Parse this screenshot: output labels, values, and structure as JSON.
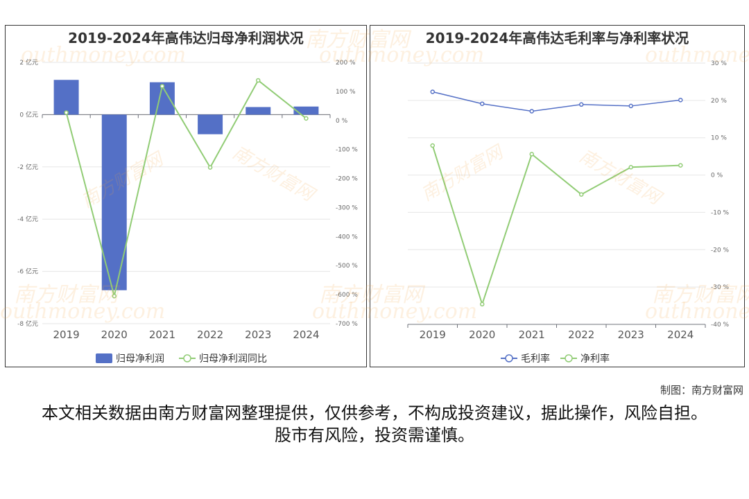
{
  "charts": {
    "left": {
      "title": "2019-2024年高伟达归母净利润状况",
      "legend": [
        "归母净利润",
        "归母净利润同比"
      ]
    },
    "right": {
      "title": "2019-2024年高伟达毛利率与净利率状况",
      "legend": [
        "毛利率",
        "净利率"
      ]
    }
  },
  "colors": {
    "bar": "#5470c6",
    "line_green": "#91cc75",
    "line_blue": "#5470c6"
  },
  "watermark": {
    "cn": "南方财富网",
    "en": "outhmoney.com"
  },
  "footer": {
    "credit": "制图：南方财富网",
    "disclaimer": "本文相关数据由南方财富网整理提供，仅供参考，不构成投资建议，据此操作，风险自担。股市有风险，投资需谨慎。"
  },
  "chart_data": [
    {
      "type": "bar",
      "title": "2019-2024年高伟达归母净利润状况",
      "categories": [
        "2019",
        "2020",
        "2021",
        "2022",
        "2023",
        "2024"
      ],
      "y_ticks": [
        "2 亿元",
        "0 亿元",
        "-2 亿元",
        "-4 亿元",
        "-6 亿元",
        "-8 亿元"
      ],
      "y2_ticks": [
        "200 %",
        "100 %",
        "0 %",
        "-100 %",
        "-200 %",
        "-300 %",
        "-400 %",
        "-500 %",
        "-600 %",
        "-700 %"
      ],
      "ylim": [
        -8,
        2
      ],
      "y2lim": [
        -700,
        200
      ],
      "series": [
        {
          "name": "归母净利润",
          "type": "bar",
          "axis": "left",
          "unit": "亿元",
          "values": [
            1.33,
            -6.72,
            1.24,
            -0.75,
            0.29,
            0.31
          ]
        },
        {
          "name": "归母净利润同比",
          "type": "line",
          "axis": "right",
          "unit": "%",
          "values": [
            27,
            -605,
            118,
            -162,
            138,
            7
          ]
        }
      ],
      "legend": "bottom-center",
      "grid": true
    },
    {
      "type": "line",
      "title": "2019-2024年高伟达毛利率与净利率状况",
      "categories": [
        "2019",
        "2020",
        "2021",
        "2022",
        "2023",
        "2024"
      ],
      "y_ticks": [
        "30 %",
        "20 %",
        "10 %",
        "0 %",
        "-10 %",
        "-20 %",
        "-30 %",
        "-40 %"
      ],
      "ylim": [
        -40,
        30
      ],
      "series": [
        {
          "name": "毛利率",
          "values": [
            22.3,
            19.1,
            17.1,
            18.9,
            18.5,
            20.1
          ]
        },
        {
          "name": "净利率",
          "values": [
            7.9,
            -34.6,
            5.6,
            -5.2,
            2.1,
            2.6
          ]
        }
      ],
      "legend": "bottom-center",
      "grid": true
    }
  ]
}
